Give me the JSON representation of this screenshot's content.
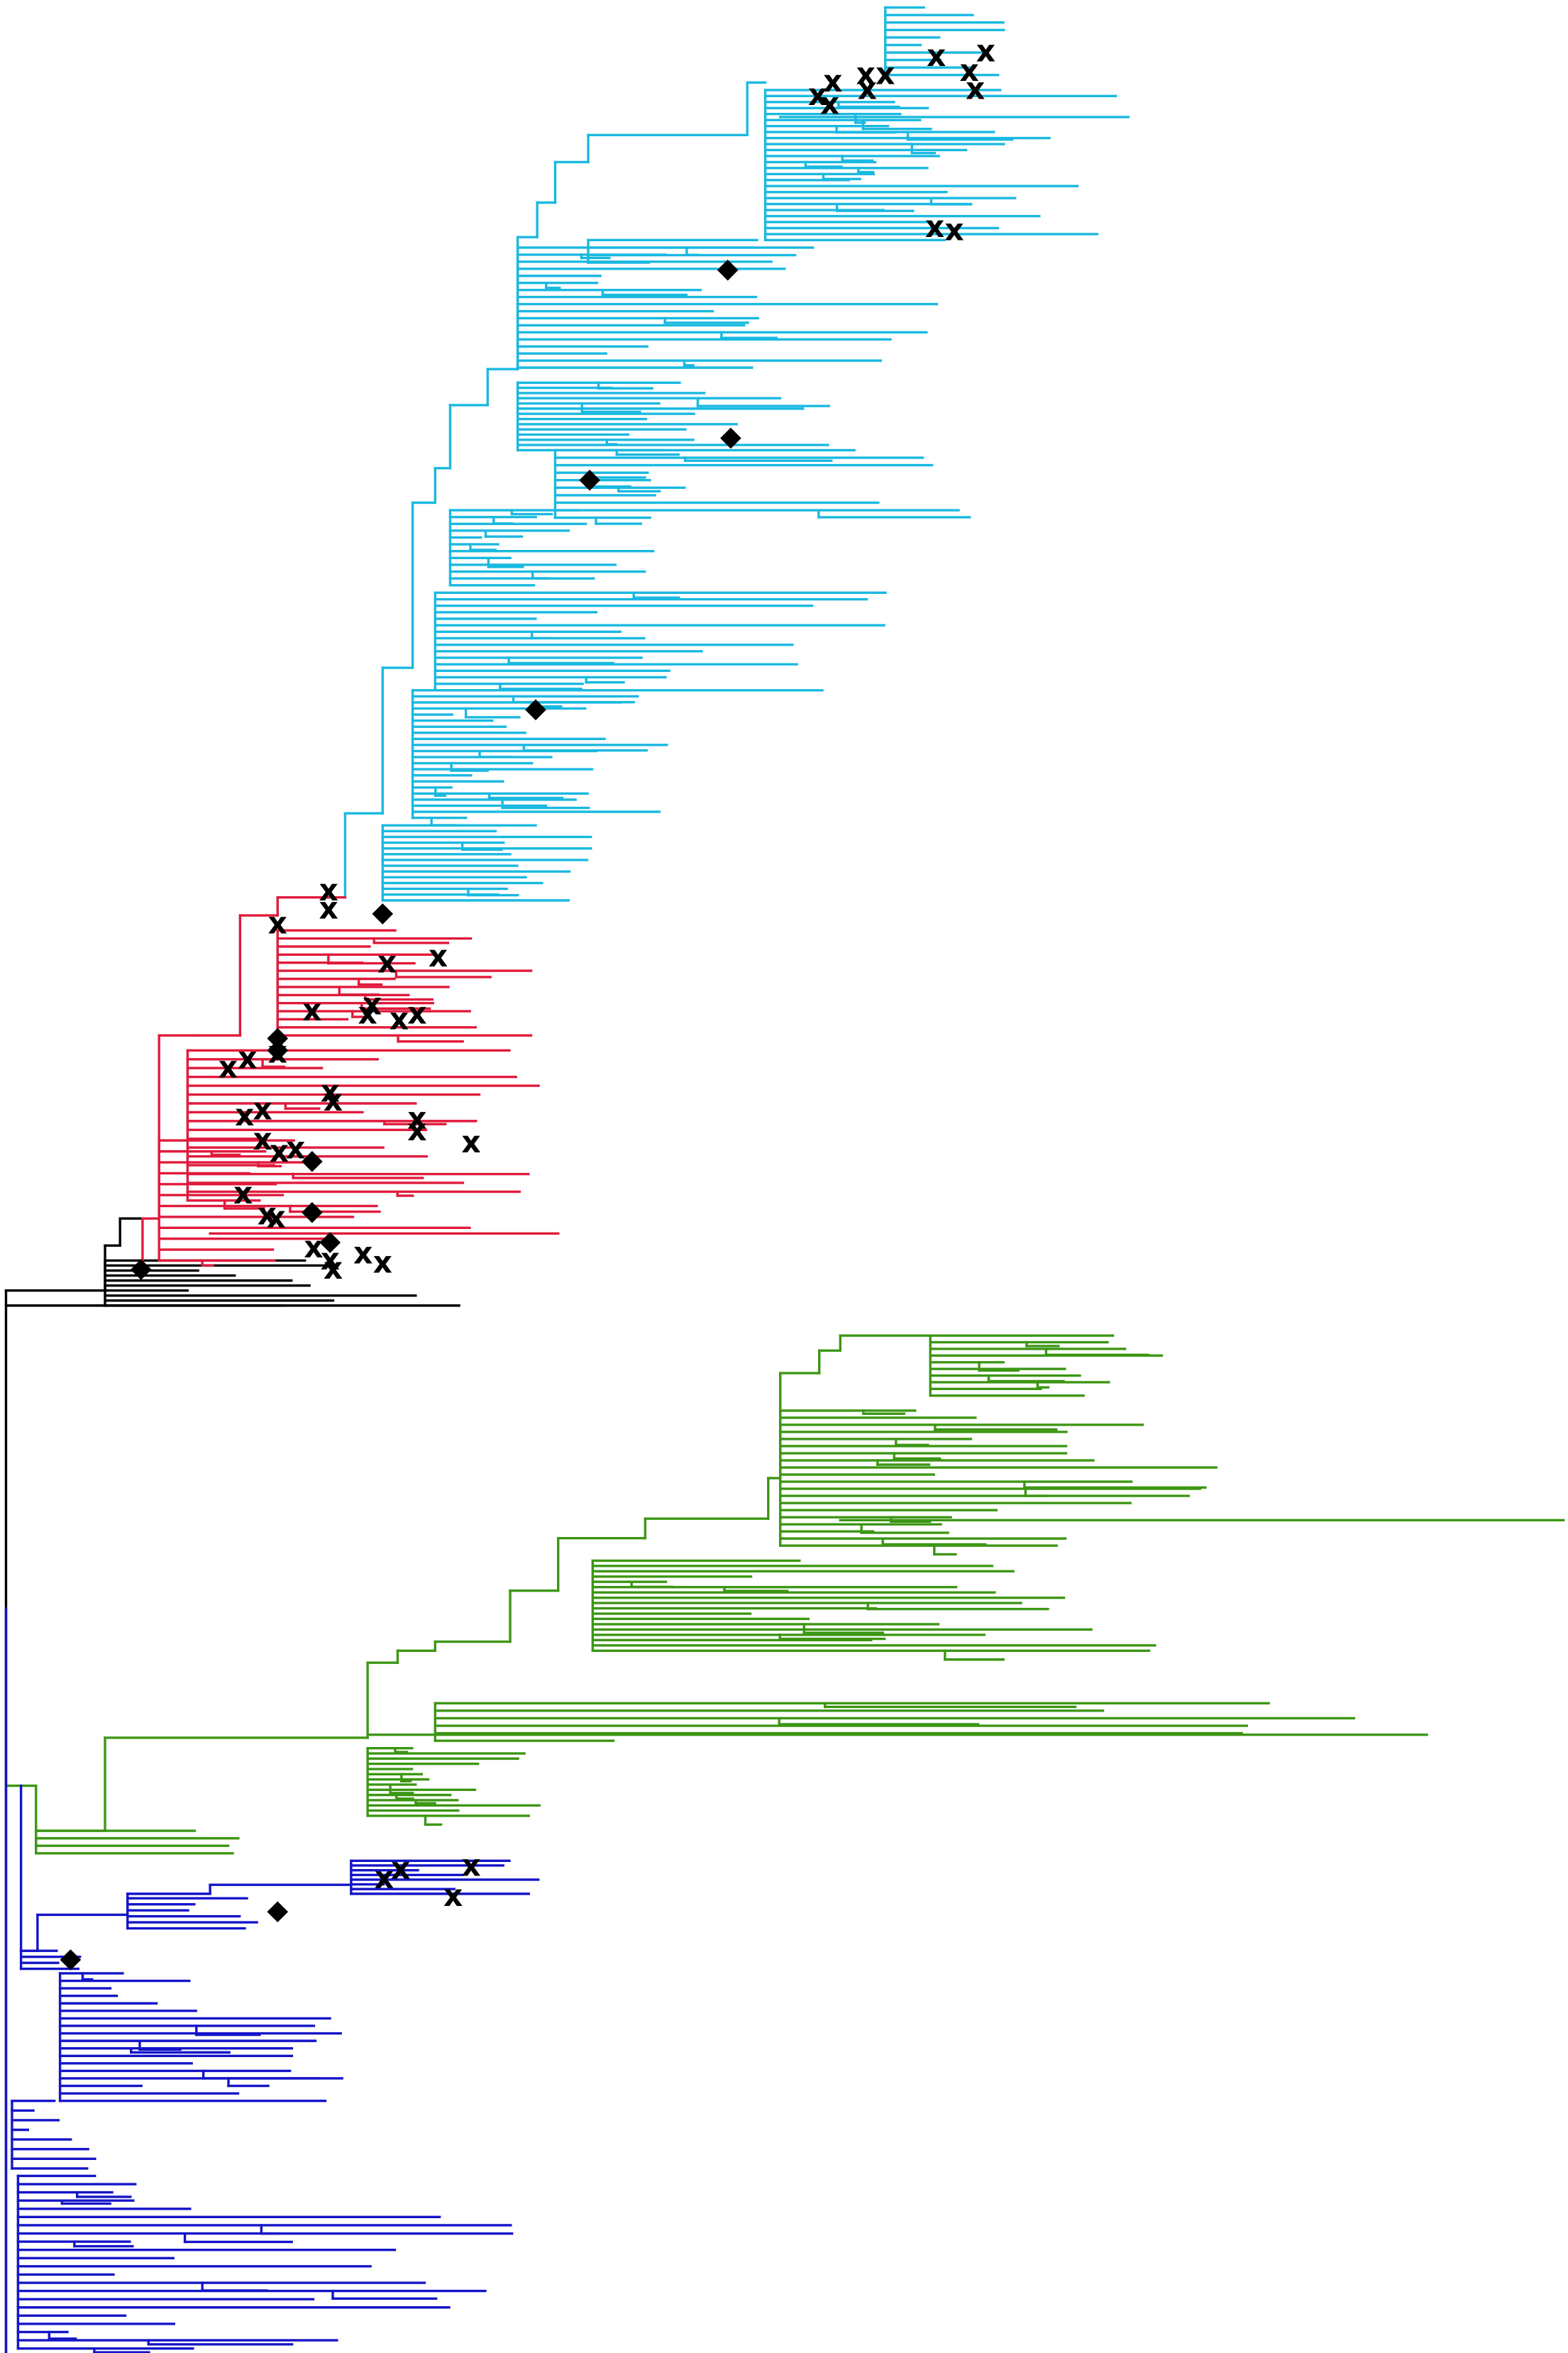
{
  "diagram": {
    "type": "phylogenetic-tree",
    "orientation": "left-to-right",
    "labels_shown": false,
    "clades": [
      {
        "id": "cyan",
        "color": "#1ab9e0"
      },
      {
        "id": "red",
        "color": "#e01a3c"
      },
      {
        "id": "green",
        "color": "#3c9614"
      },
      {
        "id": "blue",
        "color": "#1414c8"
      },
      {
        "id": "root",
        "color": "#000000"
      }
    ],
    "markers": {
      "x": {
        "glyph": "x",
        "color": "#000000"
      },
      "diamond": {
        "glyph": "◆",
        "color": "#000000"
      }
    }
  }
}
